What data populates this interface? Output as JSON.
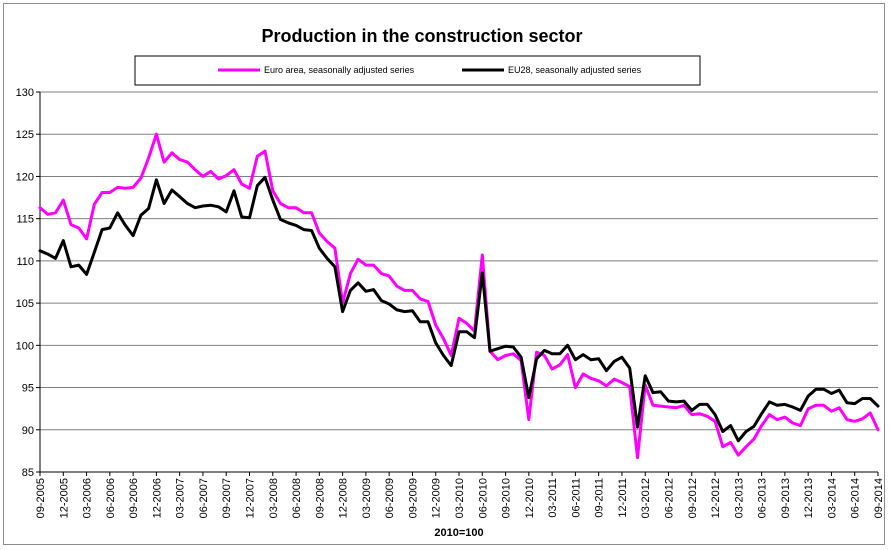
{
  "chart_data": {
    "type": "line",
    "title": "Production in the construction sector",
    "xlabel": "2010=100",
    "ylabel": "",
    "ylim": [
      85,
      130
    ],
    "yticks": [
      85,
      90,
      95,
      100,
      105,
      110,
      115,
      120,
      125,
      130
    ],
    "grid": "horizontal",
    "legend_position": "top",
    "x_tick_labels": [
      "09-2005",
      "12-2005",
      "03-2006",
      "06-2006",
      "09-2006",
      "12-2006",
      "03-2007",
      "06-2007",
      "09-2007",
      "12-2007",
      "03-2008",
      "06-2008",
      "09-2008",
      "12-2008",
      "03-2009",
      "06-2009",
      "09-2009",
      "12-2009",
      "03-2010",
      "06-2010",
      "09-2010",
      "12-2010",
      "03-2011",
      "06-2011",
      "09-2011",
      "12-2011",
      "03-2012",
      "06-2012",
      "09-2012",
      "12-2012",
      "03-2013",
      "06-2013",
      "09-2013",
      "12-2013",
      "03-2014",
      "06-2014",
      "09-2014"
    ],
    "series": [
      {
        "name": "Euro area, seasonally adjusted series",
        "color": "#ff00ff",
        "values": [
          116.3,
          115.5,
          115.7,
          117.2,
          114.3,
          113.9,
          112.6,
          116.7,
          118.1,
          118.1,
          118.7,
          118.6,
          118.7,
          119.8,
          122.2,
          125.0,
          121.7,
          122.8,
          122.0,
          121.7,
          120.8,
          120.0,
          120.6,
          119.7,
          120.1,
          120.8,
          119.1,
          118.6,
          122.4,
          123.0,
          118.3,
          116.8,
          116.3,
          116.3,
          115.7,
          115.7,
          113.3,
          112.3,
          111.5,
          105.0,
          108.5,
          110.2,
          109.5,
          109.5,
          108.5,
          108.2,
          107.0,
          106.5,
          106.5,
          105.5,
          105.2,
          102.4,
          100.8,
          98.8,
          103.2,
          102.6,
          101.7,
          110.7,
          99.3,
          98.3,
          98.8,
          99.0,
          98.2,
          91.2,
          99.2,
          98.8,
          97.2,
          97.7,
          98.9,
          95.0,
          96.6,
          96.1,
          95.8,
          95.2,
          96.0,
          95.6,
          95.1,
          86.7,
          95.3,
          92.9,
          92.8,
          92.7,
          92.6,
          92.9,
          91.8,
          91.9,
          91.6,
          91.0,
          88.0,
          88.5,
          87.0,
          88.0,
          88.9,
          90.5,
          91.8,
          91.2,
          91.5,
          90.8,
          90.5,
          92.5,
          92.9,
          92.9,
          92.2,
          92.6,
          91.2,
          91.0,
          91.3,
          92.0,
          90.0
        ]
      },
      {
        "name": "EU28, seasonally adjusted series",
        "color": "#000000",
        "values": [
          111.2,
          110.8,
          110.3,
          112.4,
          109.3,
          109.5,
          108.4,
          111.0,
          113.7,
          113.9,
          115.7,
          114.2,
          113.0,
          115.4,
          116.2,
          119.6,
          116.8,
          118.4,
          117.6,
          116.8,
          116.3,
          116.5,
          116.6,
          116.4,
          115.8,
          118.3,
          115.2,
          115.1,
          118.9,
          119.9,
          117.2,
          114.9,
          114.5,
          114.2,
          113.7,
          113.6,
          111.5,
          110.3,
          109.3,
          104.0,
          106.5,
          107.4,
          106.4,
          106.6,
          105.3,
          104.9,
          104.2,
          104.0,
          104.1,
          102.8,
          102.8,
          100.3,
          98.8,
          97.6,
          101.6,
          101.6,
          100.9,
          108.6,
          99.3,
          99.6,
          99.9,
          99.8,
          98.6,
          93.8,
          98.4,
          99.4,
          99.0,
          99.0,
          100.0,
          98.3,
          98.9,
          98.3,
          98.4,
          97.0,
          98.1,
          98.6,
          97.3,
          90.3,
          96.4,
          94.4,
          94.5,
          93.4,
          93.3,
          93.4,
          92.3,
          93.0,
          93.0,
          91.8,
          89.8,
          90.5,
          88.7,
          89.8,
          90.4,
          91.9,
          93.3,
          92.9,
          93.0,
          92.7,
          92.3,
          94.0,
          94.8,
          94.8,
          94.3,
          94.7,
          93.2,
          93.1,
          93.7,
          93.7,
          92.8
        ]
      }
    ]
  }
}
